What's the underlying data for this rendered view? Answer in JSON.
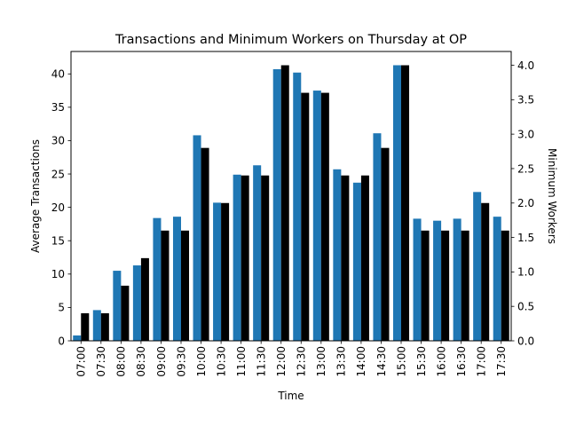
{
  "chart_data": {
    "type": "bar",
    "title": "Transactions and Minimum Workers on Thursday at OP",
    "xlabel": "Time",
    "ylabel": "Average Transactions",
    "ylabel_right": "Minimum Workers",
    "categories": [
      "07:00",
      "07:30",
      "08:00",
      "08:30",
      "09:00",
      "09:30",
      "10:00",
      "10:30",
      "11:00",
      "11:30",
      "12:00",
      "12:30",
      "13:00",
      "13:30",
      "14:00",
      "14:30",
      "15:00",
      "15:30",
      "16:00",
      "16:30",
      "17:00",
      "17:30"
    ],
    "series": [
      {
        "axis": "left",
        "color": "#1f77b4",
        "values": [
          0.8,
          4.6,
          10.5,
          11.3,
          18.4,
          18.6,
          30.8,
          20.7,
          24.9,
          26.3,
          40.7,
          40.2,
          37.5,
          25.7,
          23.7,
          31.1,
          41.3,
          18.3,
          18.0,
          18.3,
          22.3,
          18.6
        ]
      },
      {
        "axis": "right",
        "color": "#000000",
        "values": [
          0.4,
          0.4,
          0.8,
          1.2,
          1.6,
          1.6,
          2.8,
          2.0,
          2.4,
          2.4,
          4.0,
          3.6,
          3.6,
          2.4,
          2.4,
          2.8,
          4.0,
          1.6,
          1.6,
          1.6,
          2.0,
          1.6
        ]
      }
    ],
    "ylim": [
      0,
      43.36
    ],
    "ylim_right": [
      0,
      4.2
    ],
    "yticks": [
      0,
      5,
      10,
      15,
      20,
      25,
      30,
      35,
      40
    ],
    "yticks_right": [
      "0.0",
      "0.5",
      "1.0",
      "1.5",
      "2.0",
      "2.5",
      "3.0",
      "3.5",
      "4.0"
    ],
    "grid": false
  }
}
